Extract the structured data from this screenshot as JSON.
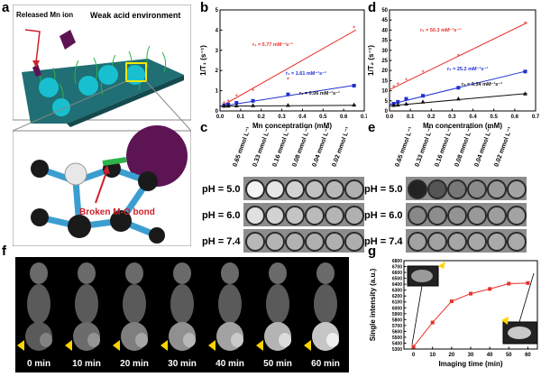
{
  "panels": {
    "a": "a",
    "b": "b",
    "c": "c",
    "d": "d",
    "e": "e",
    "f": "f",
    "g": "g"
  },
  "panel_a": {
    "released_label": "Released Mn ion",
    "env_label": "Weak acid environment",
    "bond_label": "Broken M-O bond"
  },
  "ph_labels": [
    "pH = 5.0",
    "pH = 6.0",
    "pH = 7.4"
  ],
  "conc_labels": [
    "0.65 mmol L⁻¹",
    "0.33 mmol L⁻¹",
    "0.16 mmol L⁻¹",
    "0.08 mmol L⁻¹",
    "0.04 mmol L⁻¹",
    "0.02 mmol L⁻¹"
  ],
  "mri_times": [
    "0 min",
    "10 min",
    "20 min",
    "30 min",
    "40 min",
    "50 min",
    "60 min"
  ],
  "colors": {
    "red": "#e8312a",
    "blue": "#1f2fd0",
    "black": "#111111",
    "panel_a_surface": "#1f6f74",
    "nanoparticle": "#18c0cf"
  },
  "chart_data": [
    {
      "type": "scatter",
      "title": "",
      "xlabel": "Mn concentration (mM)",
      "ylabel": "1/T₁ (s⁻¹)",
      "xlim": [
        0.0,
        0.7
      ],
      "ylim": [
        0,
        5
      ],
      "xticks": [
        "0.0",
        "0.1",
        "0.2",
        "0.3",
        "0.4",
        "0.5",
        "0.6",
        "0.7"
      ],
      "yticks": [
        "0",
        "1",
        "2",
        "3",
        "4",
        "5"
      ],
      "series": [
        {
          "name": "",
          "label": "r₁ = 5.77 mM⁻¹s⁻¹",
          "color": "#e8312a",
          "marker": "*",
          "x": [
            0.02,
            0.04,
            0.08,
            0.16,
            0.33,
            0.65
          ],
          "y": [
            0.35,
            0.45,
            0.72,
            0.98,
            1.55,
            4.08
          ],
          "fit": [
            0.2,
            5.77
          ]
        },
        {
          "name": "",
          "label": "r₁ = 1.61 mM⁻¹s⁻¹",
          "color": "#1f2fd0",
          "marker": "square",
          "x": [
            0.02,
            0.04,
            0.08,
            0.16,
            0.33,
            0.65
          ],
          "y": [
            0.28,
            0.32,
            0.4,
            0.5,
            0.82,
            1.25
          ],
          "fit": [
            0.22,
            1.61
          ]
        },
        {
          "name": "",
          "label": "r₁ = 0.06 mM⁻¹s⁻¹",
          "color": "#111111",
          "marker": "triangle",
          "x": [
            0.02,
            0.04,
            0.08,
            0.16,
            0.33,
            0.65
          ],
          "y": [
            0.24,
            0.25,
            0.26,
            0.27,
            0.28,
            0.3
          ],
          "fit": [
            0.24,
            0.06
          ]
        }
      ]
    },
    {
      "type": "scatter",
      "title": "",
      "xlabel": "Mn concentration (mM)",
      "ylabel": "1/T₂ (s⁻¹)",
      "xlim": [
        0.0,
        0.7
      ],
      "ylim": [
        0,
        50
      ],
      "xticks": [
        "0.0",
        "0.1",
        "0.2",
        "0.3",
        "0.4",
        "0.5",
        "0.6",
        "0.7"
      ],
      "yticks": [
        "0",
        "5",
        "10",
        "15",
        "20",
        "25",
        "30",
        "35",
        "40",
        "45",
        "50"
      ],
      "series": [
        {
          "name": "",
          "label": "r₂ = 50.3 mM⁻¹s⁻¹",
          "color": "#e8312a",
          "marker": "*",
          "x": [
            0.02,
            0.04,
            0.08,
            0.16,
            0.33,
            0.65
          ],
          "y": [
            11.5,
            13.0,
            15.0,
            19.0,
            27.0,
            43.0
          ],
          "fit": [
            10.5,
            50.3
          ]
        },
        {
          "name": "",
          "label": "r₂ = 25.2 mM⁻¹s⁻¹",
          "color": "#1f2fd0",
          "marker": "square",
          "x": [
            0.02,
            0.04,
            0.08,
            0.16,
            0.33,
            0.65
          ],
          "y": [
            3.6,
            4.5,
            6.0,
            7.5,
            11.5,
            19.5
          ],
          "fit": [
            3.2,
            25.2
          ]
        },
        {
          "name": "",
          "label": "r₂ = 9.34 mM⁻¹s⁻¹",
          "color": "#111111",
          "marker": "triangle",
          "x": [
            0.02,
            0.04,
            0.08,
            0.16,
            0.33,
            0.65
          ],
          "y": [
            2.8,
            3.0,
            3.5,
            4.5,
            6.0,
            8.5
          ],
          "fit": [
            2.5,
            9.34
          ]
        }
      ]
    },
    {
      "type": "line",
      "title": "",
      "xlabel": "Imaging time (min)",
      "ylabel": "Single intensity (a.u.)",
      "xlim": [
        -5,
        65
      ],
      "ylim": [
        5300,
        6800
      ],
      "xticks": [
        "0",
        "10",
        "20",
        "30",
        "40",
        "50",
        "60"
      ],
      "yticks": [
        "5300",
        "5400",
        "5500",
        "5600",
        "5700",
        "5800",
        "5900",
        "6000",
        "6100",
        "6200",
        "6300",
        "6400",
        "6500",
        "6600",
        "6700",
        "6800"
      ],
      "series": [
        {
          "name": "",
          "color": "#e8312a",
          "marker": "square",
          "x": [
            0,
            10,
            20,
            30,
            40,
            50,
            60
          ],
          "y": [
            5340,
            5750,
            6110,
            6240,
            6320,
            6410,
            6420
          ]
        }
      ]
    }
  ]
}
